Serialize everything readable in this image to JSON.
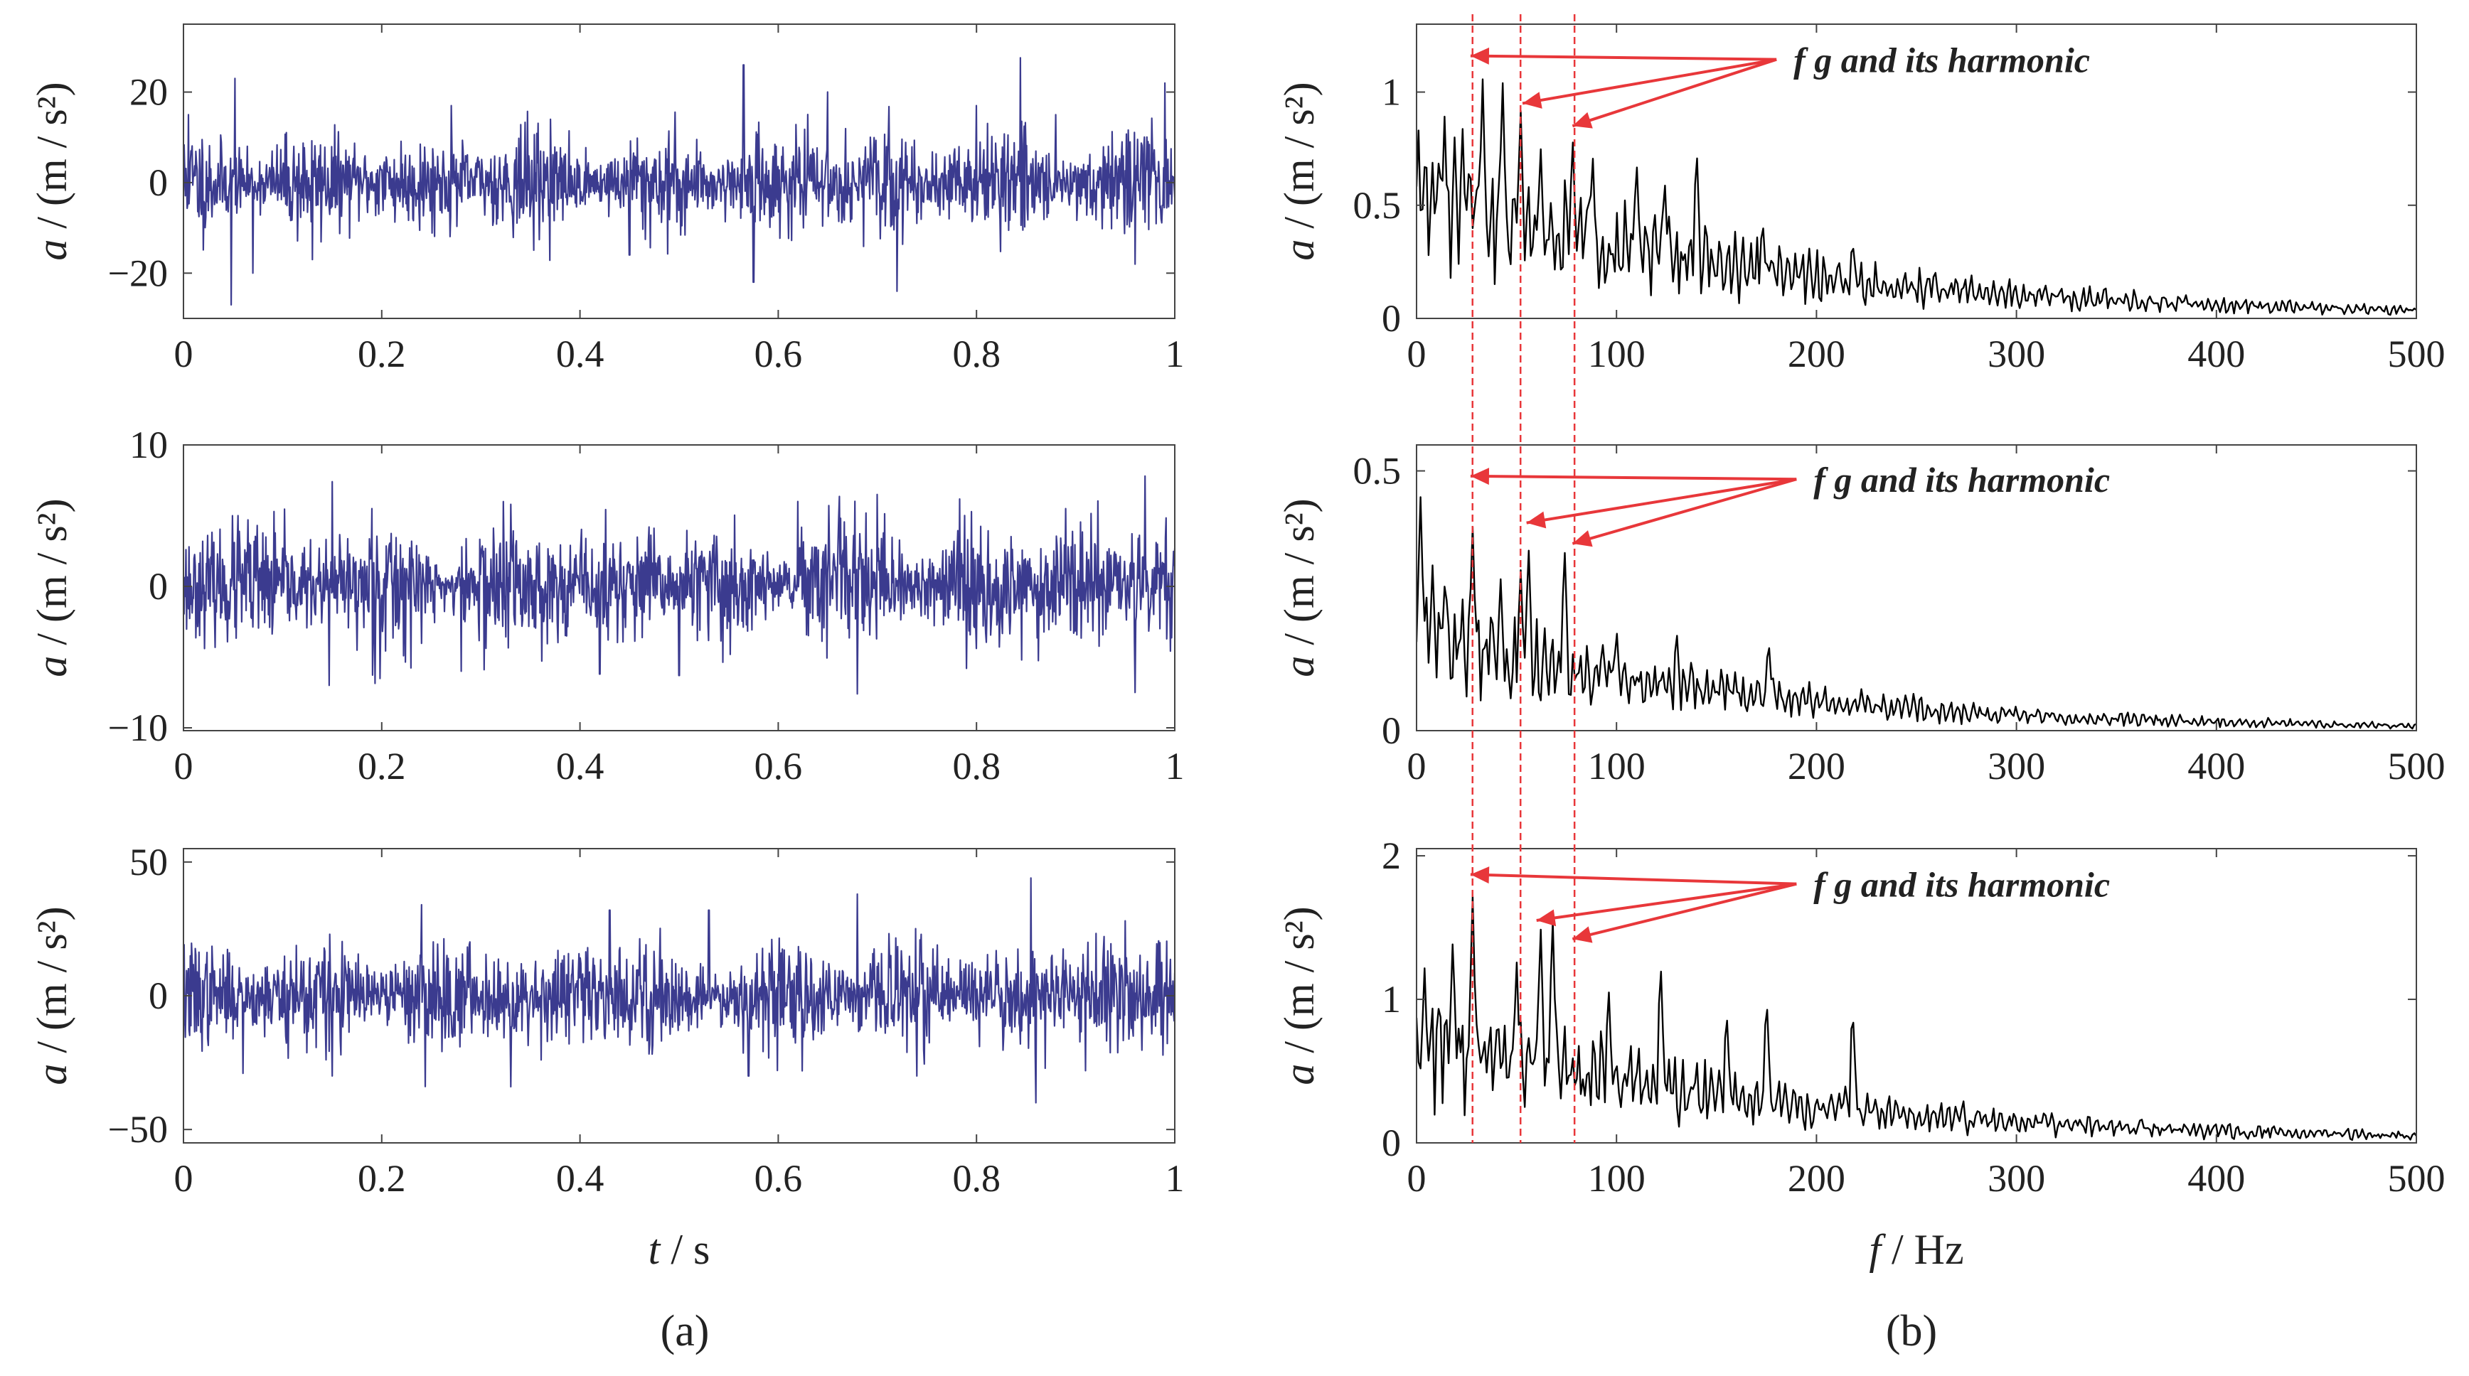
{
  "captions": {
    "a": "(a)",
    "b": "(b)"
  },
  "colors": {
    "time": "#3b3b8f",
    "spectrum": "#000000",
    "guide": "#e8373a",
    "axis": "#444444"
  },
  "chart_data": [
    {
      "id": "time1",
      "type": "line",
      "panel": "a",
      "row": 1,
      "xlabel": {
        "var": "t",
        "unit": " / s"
      },
      "ylabel": {
        "var": "a",
        "unit": " / (m / s²)"
      },
      "xlim": [
        0,
        1
      ],
      "ylim": [
        -30,
        35
      ],
      "xticks": [
        0,
        0.2,
        0.4,
        0.6,
        0.8,
        1
      ],
      "xticklabels": [
        "0",
        "0.2",
        "0.4",
        "0.6",
        "0.8",
        "1"
      ],
      "yticks": [
        -20,
        0,
        20
      ],
      "yticklabels": [
        "−20",
        "0",
        "20"
      ],
      "signal": {
        "n": 1600,
        "noise_amp": 6,
        "seed": 11,
        "peaks": [
          [
            0.048,
            -27
          ],
          [
            0.052,
            23
          ],
          [
            0.565,
            26
          ],
          [
            0.575,
            -22
          ],
          [
            0.72,
            -24
          ],
          [
            0.65,
            20
          ],
          [
            0.99,
            22
          ],
          [
            0.005,
            15
          ],
          [
            0.27,
            17
          ],
          [
            0.8,
            17
          ],
          [
            0.96,
            -18
          ],
          [
            0.07,
            -20
          ],
          [
            0.37,
            14
          ],
          [
            0.45,
            -16
          ],
          [
            0.13,
            -17
          ],
          [
            0.88,
            15
          ]
        ]
      },
      "show_xlabel": false
    },
    {
      "id": "time2",
      "type": "line",
      "panel": "a",
      "row": 2,
      "xlabel": {
        "var": "t",
        "unit": " / s"
      },
      "ylabel": {
        "var": "a",
        "unit": " / (m / s²)"
      },
      "xlim": [
        0,
        1
      ],
      "ylim": [
        -10.2,
        10
      ],
      "xticks": [
        0,
        0.2,
        0.4,
        0.6,
        0.8,
        1
      ],
      "xticklabels": [
        "0",
        "0.2",
        "0.4",
        "0.6",
        "0.8",
        "1"
      ],
      "yticks": [
        -10,
        0,
        10
      ],
      "yticklabels": [
        "−10",
        "0",
        "10"
      ],
      "signal": {
        "n": 1600,
        "noise_amp": 2.4,
        "seed": 23,
        "peaks": [
          [
            0.15,
            7.4
          ],
          [
            0.147,
            -7
          ],
          [
            0.97,
            7.8
          ],
          [
            0.96,
            -7.5
          ],
          [
            0.68,
            -7.6
          ],
          [
            0.7,
            6.5
          ],
          [
            0.28,
            -6
          ],
          [
            0.5,
            -6.3
          ],
          [
            0.19,
            5.5
          ],
          [
            0.62,
            6
          ],
          [
            0.42,
            -6.2
          ],
          [
            0.055,
            5
          ],
          [
            0.33,
            5.8
          ],
          [
            0.79,
            -5.8
          ],
          [
            0.89,
            5.5
          ]
        ]
      },
      "show_xlabel": false
    },
    {
      "id": "time3",
      "type": "line",
      "panel": "a",
      "row": 3,
      "xlabel": {
        "var": "t",
        "unit": " / s"
      },
      "ylabel": {
        "var": "a",
        "unit": " / (m / s²)"
      },
      "xlim": [
        0,
        1
      ],
      "ylim": [
        -55,
        55
      ],
      "xticks": [
        0,
        0.2,
        0.4,
        0.6,
        0.8,
        1
      ],
      "xticklabels": [
        "0",
        "0.2",
        "0.4",
        "0.6",
        "0.8",
        "1"
      ],
      "yticks": [
        -50,
        0,
        50
      ],
      "yticklabels": [
        "−50",
        "0",
        "50"
      ],
      "signal": {
        "n": 1600,
        "noise_amp": 11,
        "seed": 37,
        "peaks": [
          [
            0.855,
            44
          ],
          [
            0.86,
            -40
          ],
          [
            0.68,
            -37
          ],
          [
            0.68,
            38
          ],
          [
            0.24,
            -36
          ],
          [
            0.24,
            34
          ],
          [
            0.33,
            -34
          ],
          [
            0.53,
            32
          ],
          [
            0.15,
            -30
          ],
          [
            0.43,
            32
          ],
          [
            0.74,
            -30
          ],
          [
            0.91,
            -28
          ],
          [
            0.06,
            -29
          ],
          [
            0.95,
            28
          ],
          [
            0.57,
            -30
          ]
        ]
      },
      "show_xlabel": true
    },
    {
      "id": "spec1",
      "type": "line",
      "panel": "b",
      "row": 1,
      "xlabel": {
        "var": "f",
        "unit": " / Hz"
      },
      "ylabel": {
        "var": "a",
        "unit": " / (m / s²)"
      },
      "xlim": [
        0,
        500
      ],
      "ylim": [
        0,
        1.3
      ],
      "xticks": [
        0,
        100,
        200,
        300,
        400,
        500
      ],
      "xticklabels": [
        "0",
        "100",
        "200",
        "300",
        "400",
        "500"
      ],
      "yticks": [
        0,
        0.5,
        1
      ],
      "yticklabels": [
        "0",
        "0.5",
        "1"
      ],
      "spectrum": {
        "n": 500,
        "base0": 0.55,
        "decay": 0.0055,
        "noise": 0.45,
        "seed": 51,
        "peaks": [
          [
            14,
            0.9
          ],
          [
            23,
            0.85
          ],
          [
            33,
            1.08
          ],
          [
            43,
            1.07
          ],
          [
            52,
            0.95
          ],
          [
            62,
            0.78
          ],
          [
            78,
            0.82
          ],
          [
            88,
            0.75
          ],
          [
            110,
            0.72
          ],
          [
            124,
            0.64
          ],
          [
            140,
            0.78
          ],
          [
            173,
            0.45
          ],
          [
            218,
            0.36
          ]
        ]
      },
      "annotation": "f g  and its harmonic",
      "annotation_tail": [
        0.36,
        0.88
      ],
      "arrow_heads": [
        [
          27,
          1.16
        ],
        [
          53,
          0.95
        ],
        [
          78,
          0.85
        ]
      ],
      "show_xlabel": false
    },
    {
      "id": "spec2",
      "type": "line",
      "panel": "b",
      "row": 2,
      "xlabel": {
        "var": "f",
        "unit": " / Hz"
      },
      "ylabel": {
        "var": "a",
        "unit": " / (m / s²)"
      },
      "xlim": [
        0,
        500
      ],
      "ylim": [
        0,
        0.55
      ],
      "xticks": [
        0,
        100,
        200,
        300,
        400,
        500
      ],
      "xticklabels": [
        "0",
        "100",
        "200",
        "300",
        "400",
        "500"
      ],
      "yticks": [
        0,
        0.5
      ],
      "yticklabels": [
        "0",
        "0.5"
      ],
      "spectrum": {
        "n": 500,
        "base0": 0.19,
        "decay": 0.006,
        "noise": 0.42,
        "seed": 63,
        "peaks": [
          [
            2,
            0.45
          ],
          [
            8,
            0.32
          ],
          [
            14,
            0.28
          ],
          [
            28,
            0.4
          ],
          [
            42,
            0.3
          ],
          [
            52,
            0.32
          ],
          [
            56,
            0.36
          ],
          [
            74,
            0.36
          ],
          [
            100,
            0.2
          ],
          [
            130,
            0.2
          ],
          [
            176,
            0.18
          ]
        ]
      },
      "annotation": "f g  and its harmonic",
      "annotation_tail": [
        0.38,
        0.88
      ],
      "arrow_heads": [
        [
          27,
          0.49
        ],
        [
          55,
          0.4
        ],
        [
          78,
          0.36
        ]
      ],
      "show_xlabel": false
    },
    {
      "id": "spec3",
      "type": "line",
      "panel": "b",
      "row": 3,
      "xlabel": {
        "var": "f",
        "unit": " / Hz"
      },
      "ylabel": {
        "var": "a",
        "unit": " / (m / s²)"
      },
      "xlim": [
        0,
        500
      ],
      "ylim": [
        0,
        2.05
      ],
      "xticks": [
        0,
        100,
        200,
        300,
        400,
        500
      ],
      "xticklabels": [
        "0",
        "100",
        "200",
        "300",
        "400",
        "500"
      ],
      "yticks": [
        0,
        1,
        2
      ],
      "yticklabels": [
        "0",
        "1",
        "2"
      ],
      "spectrum": {
        "n": 500,
        "base0": 0.75,
        "decay": 0.0055,
        "noise": 0.5,
        "seed": 77,
        "peaks": [
          [
            4,
            1.22
          ],
          [
            18,
            1.4
          ],
          [
            28,
            1.75
          ],
          [
            50,
            1.3
          ],
          [
            62,
            1.55
          ],
          [
            68,
            1.62
          ],
          [
            96,
            1.12
          ],
          [
            122,
            1.3
          ],
          [
            155,
            0.95
          ],
          [
            175,
            1.05
          ],
          [
            218,
            0.98
          ]
        ]
      },
      "annotation": "f g  and its harmonic",
      "annotation_tail": [
        0.38,
        0.88
      ],
      "arrow_heads": [
        [
          27,
          1.87
        ],
        [
          60,
          1.55
        ],
        [
          78,
          1.42
        ]
      ],
      "show_xlabel": true
    }
  ],
  "guides": {
    "freqs": [
      28,
      52,
      79
    ]
  }
}
